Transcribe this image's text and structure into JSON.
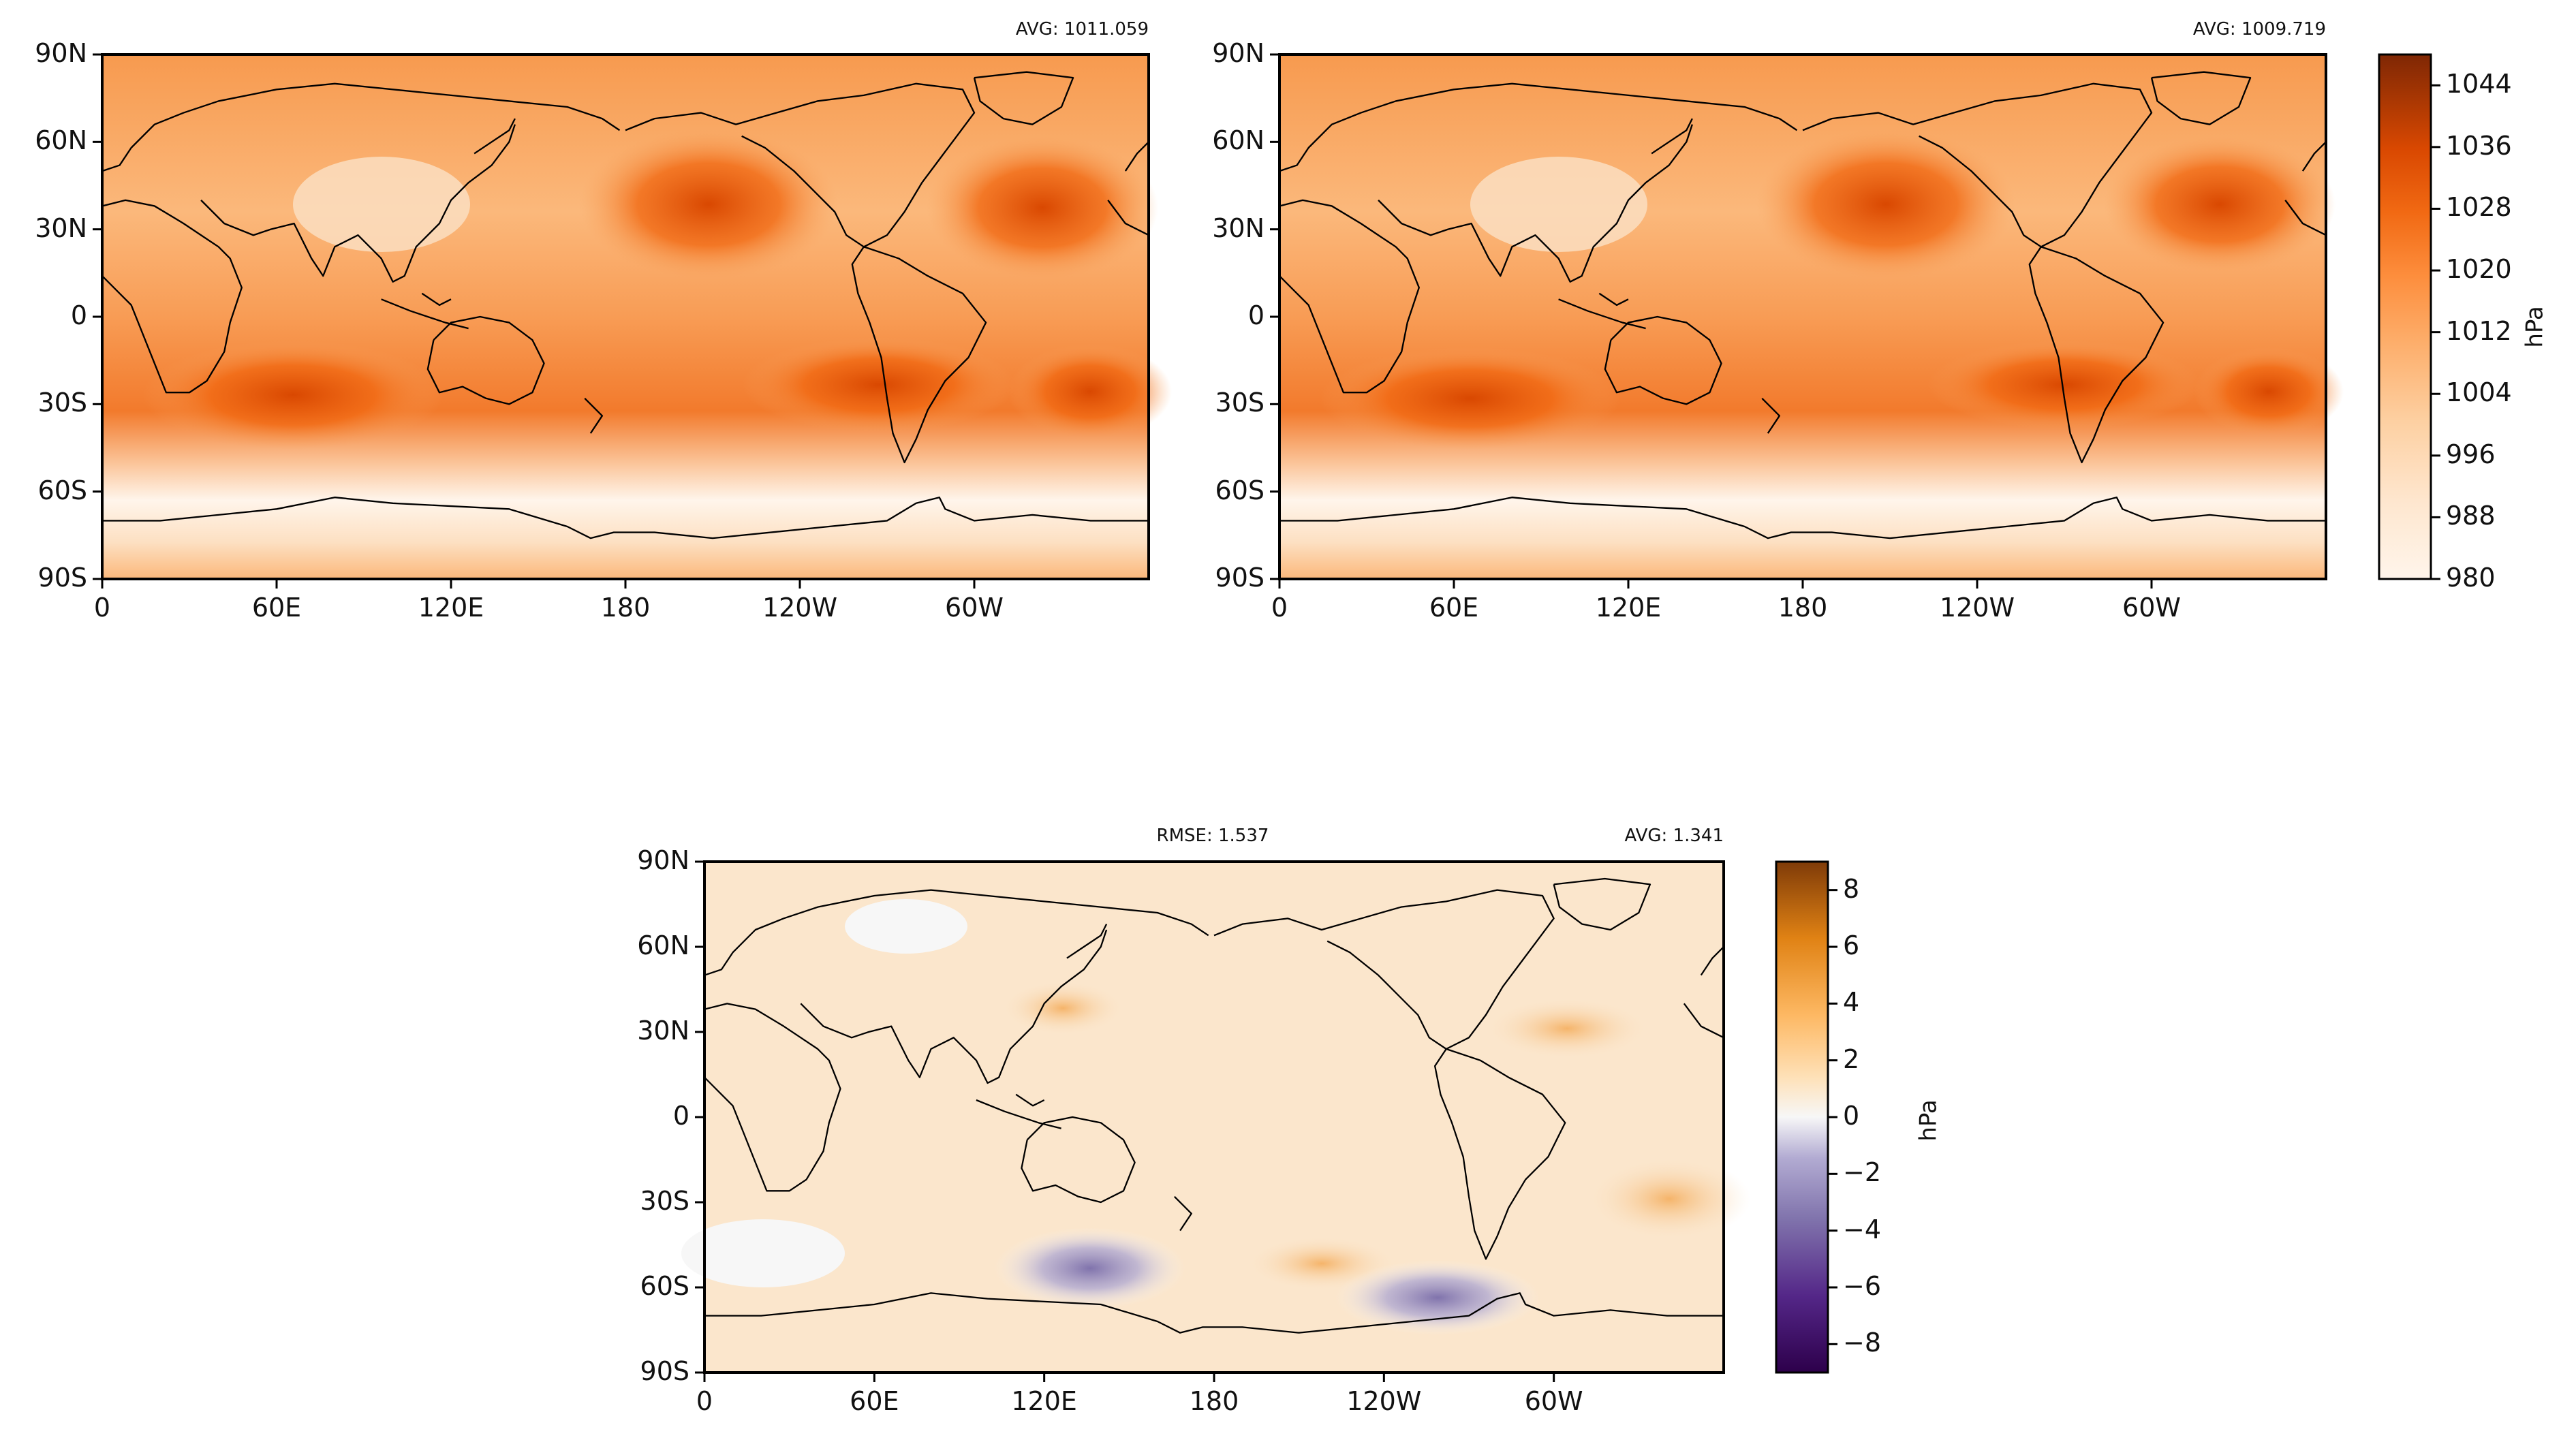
{
  "panels": [
    {
      "id": "model",
      "avg_label": "AVG: 1011.059",
      "rmse_label": ""
    },
    {
      "id": "obs",
      "avg_label": "AVG: 1009.719",
      "rmse_label": ""
    },
    {
      "id": "diff",
      "avg_label": "AVG: 1.341",
      "rmse_label": "RMSE: 1.537"
    }
  ],
  "lat_ticks": [
    "90N",
    "60N",
    "30N",
    "0",
    "30S",
    "60S",
    "90S"
  ],
  "lon_ticks": [
    "0",
    "60E",
    "120E",
    "180",
    "120W",
    "60W"
  ],
  "colorbars": {
    "pressure": {
      "unit": "hPa",
      "range": [
        980,
        1048
      ],
      "tick_labels": [
        "1044",
        "1036",
        "1028",
        "1020",
        "1012",
        "1004",
        "996",
        "988",
        "980"
      ],
      "colors": [
        "#fff5eb",
        "#fee6ce",
        "#fdd0a2",
        "#fdae6b",
        "#fd8d3c",
        "#f16913",
        "#d94801",
        "#a63603",
        "#7f2704"
      ]
    },
    "difference": {
      "unit": "hPa",
      "range": [
        -9,
        9
      ],
      "tick_labels": [
        "8",
        "6",
        "4",
        "2",
        "0",
        "−2",
        "−4",
        "−6",
        "−8"
      ],
      "colors_low": [
        "#2d004b",
        "#542788",
        "#8073ac",
        "#b2abd2",
        "#d8daeb",
        "#f7f7f7"
      ],
      "colors_high": [
        "#f7f7f7",
        "#fee0b6",
        "#fdb863",
        "#e08214",
        "#b35806",
        "#7f3b08"
      ]
    }
  },
  "colors": {
    "model_fill": "#f7a15c",
    "obs_fill": "#f7a15c",
    "diff_fill": "#fbe6cc",
    "coastline": "#000000"
  }
}
